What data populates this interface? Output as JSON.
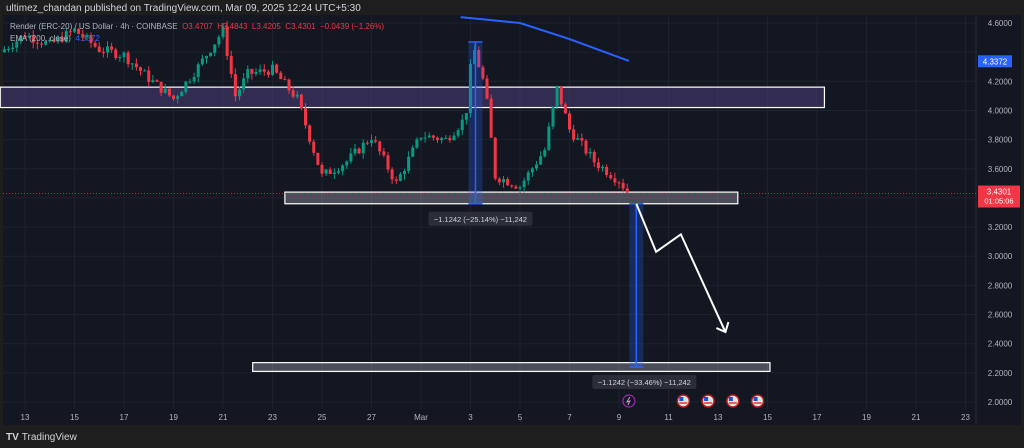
{
  "header": {
    "published": "ultimez_chandan published on TradingView.com, Mar 09, 2025 12:24 UTC+5:30"
  },
  "legend": {
    "symbol": "Render (ERC-20) / US Dollar · 4h · COINBASE",
    "open": "O3.4707",
    "high": "H3.4843",
    "low": "L3.4205",
    "close": "C3.4301",
    "change": "−0.0439 (−1.26%)",
    "ema_label": "EMA (200, close)",
    "ema_value": "4.3372"
  },
  "footer": {
    "brand": "TradingView",
    "logo": "TV"
  },
  "colors": {
    "up": "#089981",
    "down": "#f23645",
    "ema": "#2962ff",
    "bg": "#131722"
  },
  "chart_data": {
    "type": "candlestick",
    "interval": "4h",
    "ylim": [
      2.0,
      4.6
    ],
    "y_ticks": [
      "4.6000",
      "4.4000",
      "4.2000",
      "4.0000",
      "3.8000",
      "3.6000",
      "3.4000",
      "3.2000",
      "3.0000",
      "2.8000",
      "2.6000",
      "2.4000",
      "2.2000",
      "2.0000"
    ],
    "x_ticks": [
      "13",
      "15",
      "17",
      "19",
      "21",
      "23",
      "25",
      "27",
      "Mar",
      "3",
      "5",
      "7",
      "9",
      "11",
      "13",
      "15",
      "17",
      "19",
      "21",
      "23"
    ],
    "price_path_approx": [
      [
        "Feb 12",
        4.4
      ],
      [
        "Feb 13",
        4.52
      ],
      [
        "Feb 14",
        4.45
      ],
      [
        "Feb 15",
        4.55
      ],
      [
        "Feb 16",
        4.42
      ],
      [
        "Feb 17",
        4.38
      ],
      [
        "Feb 18",
        4.22
      ],
      [
        "Feb 19",
        4.08
      ],
      [
        "Feb 20",
        4.3
      ],
      [
        "Feb 21",
        4.55
      ],
      [
        "Feb 21.5",
        4.1
      ],
      [
        "Feb 22",
        4.25
      ],
      [
        "Feb 23",
        4.28
      ],
      [
        "Feb 24",
        4.08
      ],
      [
        "Feb 25",
        3.55
      ],
      [
        "Feb 26",
        3.65
      ],
      [
        "Feb 27",
        3.82
      ],
      [
        "Feb 28",
        3.5
      ],
      [
        "Mar 1",
        3.83
      ],
      [
        "Mar 2",
        3.8
      ],
      [
        "Mar 2.8",
        3.95
      ],
      [
        "Mar 3.1",
        4.45
      ],
      [
        "Mar 3.6",
        4.15
      ],
      [
        "Mar 4",
        3.55
      ],
      [
        "Mar 5",
        3.48
      ],
      [
        "Mar 6",
        3.73
      ],
      [
        "Mar 6.5",
        4.15
      ],
      [
        "Mar 7",
        3.87
      ],
      [
        "Mar 8",
        3.65
      ],
      [
        "Mar 9",
        3.52
      ],
      [
        "Mar 9.4",
        3.43
      ]
    ],
    "ema": {
      "name": "EMA (200, close)",
      "points": [
        [
          "Mar 2.6",
          4.64
        ],
        [
          "Mar 5",
          4.6
        ],
        [
          "Mar 7",
          4.49
        ],
        [
          "Mar 9.4",
          4.34
        ]
      ],
      "last": "4.3372"
    },
    "last_price": {
      "value": "3.4301",
      "countdown": "01:05:06"
    },
    "zones": [
      {
        "from": "Feb 12",
        "to": "Mar 17.3",
        "low": 4.02,
        "high": 4.16
      },
      {
        "from": "Feb 23.5",
        "to": "Mar 13.8",
        "low": 3.36,
        "high": 3.44
      },
      {
        "from": "Feb 22.2",
        "to": "Mar 15.1",
        "low": 2.21,
        "high": 2.27
      }
    ],
    "measurements": [
      {
        "label": "−1.1242 (−25.14%) −11,242",
        "date": "Mar 3.2",
        "from": 4.47,
        "to": 3.36
      },
      {
        "label": "−1.1242 (−33.46%) −11,242",
        "date": "Mar 9.7",
        "from": 3.36,
        "to": 2.24
      }
    ],
    "projection_path": [
      [
        "Mar 9.7",
        3.36
      ],
      [
        "Mar 10.5",
        3.03
      ],
      [
        "Mar 11.5",
        3.15
      ],
      [
        "Mar 13.3",
        2.48
      ]
    ],
    "events": [
      {
        "type": "lightning",
        "date": "Mar 9.4"
      },
      {
        "type": "us-flag",
        "date": "Mar 11.6"
      },
      {
        "type": "us-flag",
        "date": "Mar 12.6"
      },
      {
        "type": "us-flag",
        "date": "Mar 13.6"
      },
      {
        "type": "us-flag",
        "date": "Mar 14.6"
      }
    ]
  }
}
